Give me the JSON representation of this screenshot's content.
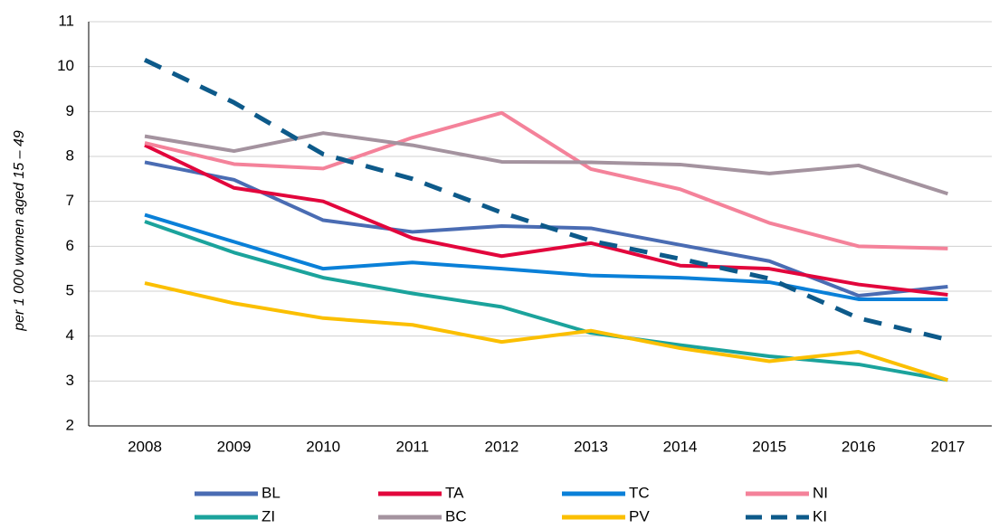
{
  "chart_data": {
    "type": "line",
    "y_label": "per 1 000 women aged 15 – 49",
    "categories": [
      "2008",
      "2009",
      "2010",
      "2011",
      "2012",
      "2013",
      "2014",
      "2015",
      "2016",
      "2017"
    ],
    "series": [
      {
        "name": "BL",
        "color": "#4a6cb3",
        "values": [
          7.87,
          7.48,
          6.58,
          6.32,
          6.45,
          6.4,
          6.03,
          5.67,
          4.9,
          5.1
        ]
      },
      {
        "name": "TA",
        "color": "#e2063c",
        "values": [
          8.25,
          7.3,
          7.0,
          6.18,
          5.78,
          6.07,
          5.57,
          5.5,
          5.15,
          4.92
        ]
      },
      {
        "name": "TC",
        "color": "#0a80d8",
        "values": [
          6.7,
          6.1,
          5.5,
          5.64,
          5.5,
          5.35,
          5.3,
          5.2,
          4.82,
          4.82
        ]
      },
      {
        "name": "NI",
        "color": "#f4829a",
        "values": [
          8.3,
          7.83,
          7.73,
          8.42,
          8.97,
          7.72,
          7.27,
          6.52,
          6.0,
          5.95
        ]
      },
      {
        "name": "ZI",
        "color": "#1ba39c",
        "values": [
          6.55,
          5.86,
          5.3,
          4.95,
          4.65,
          4.07,
          3.8,
          3.55,
          3.37,
          3.02
        ]
      },
      {
        "name": "BC",
        "color": "#a4939f",
        "values": [
          8.45,
          8.12,
          8.52,
          8.25,
          7.88,
          7.87,
          7.82,
          7.62,
          7.8,
          7.17
        ]
      },
      {
        "name": "PV",
        "color": "#fbbf00",
        "values": [
          5.18,
          4.73,
          4.4,
          4.25,
          3.87,
          4.12,
          3.73,
          3.44,
          3.65,
          3.02
        ]
      },
      {
        "name": "KI",
        "color": "#0d5a8a",
        "style": "dashed",
        "values": [
          10.15,
          9.2,
          8.05,
          7.5,
          6.75,
          6.12,
          5.72,
          5.28,
          4.4,
          3.92
        ]
      }
    ],
    "ylim": [
      2,
      11
    ],
    "yticks": [
      2,
      3,
      4,
      5,
      6,
      7,
      8,
      9,
      10,
      11
    ],
    "grid": true,
    "legend": "bottom"
  }
}
